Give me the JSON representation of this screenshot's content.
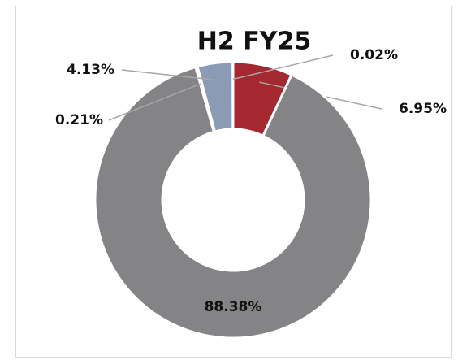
{
  "chart_data": {
    "type": "donut",
    "title": "H2 FY25",
    "values": [
      6.95,
      88.38,
      0.21,
      4.13,
      0.02
    ],
    "value_labels": [
      "6.95%",
      "88.38%",
      "0.21%",
      "4.13%",
      "0.02%"
    ],
    "colors": [
      "#a4282f",
      "#848486",
      "#5a5a5c",
      "#8b9bb5",
      "#c9c9c9"
    ]
  }
}
